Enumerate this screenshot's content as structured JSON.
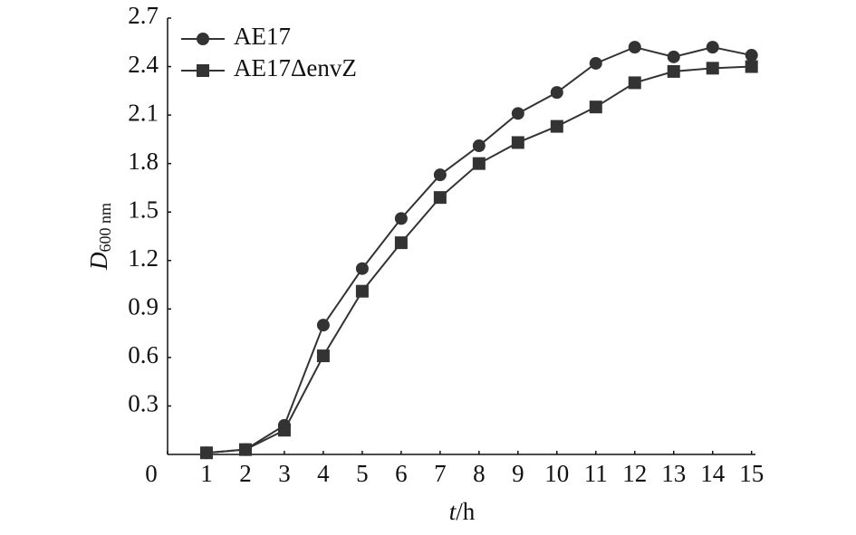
{
  "chart_data": {
    "type": "line",
    "xlabel": [
      "t",
      "/h"
    ],
    "ylabel": [
      "D",
      "600 nm"
    ],
    "x": [
      1,
      2,
      3,
      4,
      5,
      6,
      7,
      8,
      9,
      10,
      11,
      12,
      13,
      14,
      15
    ],
    "series": [
      {
        "name": "AE17",
        "color": "#333333",
        "marker": "circle",
        "values": [
          0.01,
          0.03,
          0.18,
          0.8,
          1.15,
          1.46,
          1.73,
          1.91,
          2.11,
          2.24,
          2.42,
          2.52,
          2.46,
          2.52,
          2.47
        ]
      },
      {
        "name": "AE17ΔenvZ",
        "color": "#333333",
        "marker": "square",
        "values": [
          0.01,
          0.03,
          0.15,
          0.61,
          1.01,
          1.31,
          1.59,
          1.8,
          1.93,
          2.03,
          2.15,
          2.3,
          2.37,
          2.39,
          2.4
        ]
      }
    ],
    "xlim": [
      0,
      15.1
    ],
    "xticks": [
      0,
      1,
      2,
      3,
      4,
      5,
      6,
      7,
      8,
      9,
      10,
      11,
      12,
      13,
      14,
      15
    ],
    "ylim": [
      0,
      2.7
    ],
    "yticks": [
      0.3,
      0.6,
      0.9,
      1.2,
      1.5,
      1.8,
      2.1,
      2.4,
      2.7
    ],
    "legend": "upper left"
  }
}
